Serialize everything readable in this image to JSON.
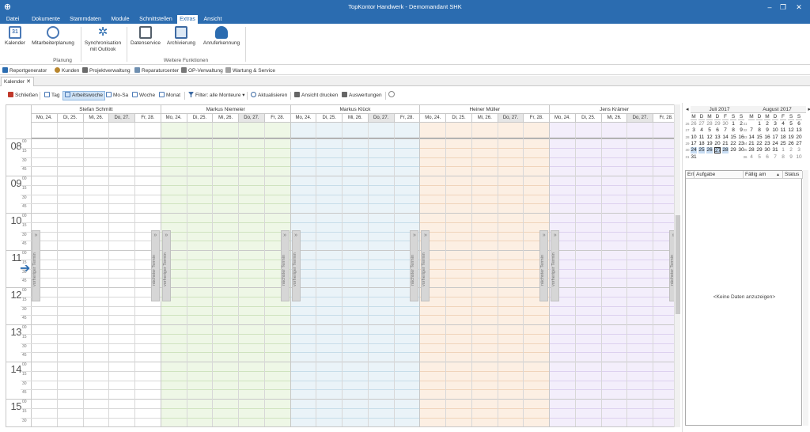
{
  "window": {
    "title": "TopKontor Handwerk - Demomandant SHK",
    "logo": "logo-icon"
  },
  "menu": {
    "tabs": [
      {
        "label": "Datei",
        "active": false
      },
      {
        "label": "Dokumente",
        "active": false
      },
      {
        "label": "Stammdaten",
        "active": false
      },
      {
        "label": "Module",
        "active": false
      },
      {
        "label": "Schnittstellen",
        "active": false
      },
      {
        "label": "Extras",
        "active": true
      },
      {
        "label": "Ansicht",
        "active": false
      }
    ]
  },
  "ribbon": {
    "buttons": [
      {
        "label": "Kalender",
        "icon": "calendar-icon",
        "color": "#4a79b6"
      },
      {
        "label": "Mitarbeiterplanung",
        "icon": "staff-planning-icon",
        "color": "#4a79b6"
      },
      {
        "label": "Synchronisation mit Outlook",
        "label1": "Synchronisation",
        "label2": "mit Outlook",
        "icon": "sync-icon",
        "color": "#2b6cb0"
      },
      {
        "label": "Datenservice",
        "icon": "data-service-icon",
        "color": "#55606b"
      },
      {
        "label": "Archivierung",
        "icon": "archive-icon",
        "color": "#3d6aa3"
      },
      {
        "label": "Anruferkennung",
        "icon": "caller-id-icon",
        "color": "#2b6cb0"
      }
    ],
    "groups": [
      "Planung",
      "Weitere Funktionen"
    ]
  },
  "quickbar": [
    {
      "label": "Reportgenerator",
      "color": "#2b6cb0"
    },
    {
      "label": "Kunden",
      "color": "#b8862e"
    },
    {
      "label": "Projektverwaltung",
      "color": "#6a6a6a"
    },
    {
      "label": "Reparaturcenter",
      "color": "#6f8fb0"
    },
    {
      "label": "OP-Verwaltung",
      "color": "#777777"
    },
    {
      "label": "Wartung & Service",
      "color": "#a0a0a0"
    }
  ],
  "doctab": {
    "label": "Kalender",
    "close": "✕"
  },
  "toolbar": [
    {
      "label": "Schließen",
      "color": "#c0392b",
      "active": false
    },
    {
      "label": "Tag",
      "color": "#4a79b6",
      "active": false
    },
    {
      "label": "Arbeitswoche",
      "color": "#4a79b6",
      "active": true
    },
    {
      "label": "Mo-Sa",
      "color": "#4a79b6",
      "active": false
    },
    {
      "label": "Woche",
      "color": "#4a79b6",
      "active": false
    },
    {
      "label": "Monat",
      "color": "#4a79b6",
      "active": false
    },
    {
      "label": "Filter: alle Monteure ▾",
      "color": "#3d6aa3",
      "active": false
    },
    {
      "label": "Aktualisieren",
      "color": "#3d6aa3",
      "active": false
    },
    {
      "label": "Ansicht drucken",
      "color": "#666666",
      "active": false
    },
    {
      "label": "Auswertungen",
      "color": "#666666",
      "active": false
    },
    {
      "label": "",
      "color": "#888888",
      "active": false
    }
  ],
  "schedule": {
    "days": [
      "Mo, 24.",
      "Di, 25.",
      "Mi, 26.",
      "Do, 27.",
      "Fr, 28."
    ],
    "today_index": 3,
    "hours": [
      "08",
      "09",
      "10",
      "11",
      "12",
      "13",
      "14",
      "15"
    ],
    "minutes": [
      "00",
      "15",
      "30",
      "45"
    ],
    "current_hour_index": 6,
    "nav_prev": "vorheriger Termin",
    "nav_next": "nächster Termin",
    "nav_symbol": "»",
    "resources": [
      {
        "name": "Stefan Schmitt",
        "tint": "#ffffff",
        "line": "#d8d8d8"
      },
      {
        "name": "Markus Niemeier",
        "tint": "#eef7e6",
        "line": "#cfe3bf"
      },
      {
        "name": "Markus Klück",
        "tint": "#eaf3f8",
        "line": "#c7dde9"
      },
      {
        "name": "Heiner Müller",
        "tint": "#fcefe3",
        "line": "#f0d4bb"
      },
      {
        "name": "Jens Krämer",
        "tint": "#f3eefb",
        "line": "#ddd1ef"
      }
    ]
  },
  "calendars": [
    {
      "month": "Juli 2017",
      "headers": [
        "M",
        "D",
        "M",
        "D",
        "F",
        "S",
        "S"
      ],
      "weeks": [
        {
          "wk": "26",
          "days": [
            "26",
            "27",
            "28",
            "29",
            "30",
            "1",
            "2"
          ],
          "muted": [
            1,
            1,
            1,
            1,
            1,
            0,
            0
          ]
        },
        {
          "wk": "27",
          "days": [
            "3",
            "4",
            "5",
            "6",
            "7",
            "8",
            "9"
          ],
          "muted": [
            0,
            0,
            0,
            0,
            0,
            0,
            0
          ]
        },
        {
          "wk": "28",
          "days": [
            "10",
            "11",
            "12",
            "13",
            "14",
            "15",
            "16"
          ],
          "muted": [
            0,
            0,
            0,
            0,
            0,
            0,
            0
          ]
        },
        {
          "wk": "29",
          "days": [
            "17",
            "18",
            "19",
            "20",
            "21",
            "22",
            "23"
          ],
          "muted": [
            0,
            0,
            0,
            0,
            0,
            0,
            0
          ]
        },
        {
          "wk": "30",
          "days": [
            "24",
            "25",
            "26",
            "27",
            "28",
            "29",
            "30"
          ],
          "muted": [
            0,
            0,
            0,
            0,
            0,
            0,
            0
          ]
        },
        {
          "wk": "31",
          "days": [
            "31",
            "",
            "",
            "",
            "",
            "",
            ""
          ],
          "muted": [
            0,
            0,
            0,
            0,
            0,
            0,
            0
          ]
        }
      ],
      "selected_row": 4
    },
    {
      "month": "August 2017",
      "headers": [
        "M",
        "D",
        "M",
        "D",
        "F",
        "S",
        "S"
      ],
      "weeks": [
        {
          "wk": "31",
          "days": [
            "",
            "1",
            "2",
            "3",
            "4",
            "5",
            "6"
          ],
          "muted": [
            0,
            0,
            0,
            0,
            0,
            0,
            0
          ]
        },
        {
          "wk": "32",
          "days": [
            "7",
            "8",
            "9",
            "10",
            "11",
            "12",
            "13"
          ],
          "muted": [
            0,
            0,
            0,
            0,
            0,
            0,
            0
          ]
        },
        {
          "wk": "33",
          "days": [
            "14",
            "15",
            "16",
            "17",
            "18",
            "19",
            "20"
          ],
          "muted": [
            0,
            0,
            0,
            0,
            0,
            0,
            0
          ]
        },
        {
          "wk": "34",
          "days": [
            "21",
            "22",
            "23",
            "24",
            "25",
            "26",
            "27"
          ],
          "muted": [
            0,
            0,
            0,
            0,
            0,
            0,
            0
          ]
        },
        {
          "wk": "35",
          "days": [
            "28",
            "29",
            "30",
            "31",
            "1",
            "2",
            "3"
          ],
          "muted": [
            0,
            0,
            0,
            0,
            1,
            1,
            1
          ]
        },
        {
          "wk": "36",
          "days": [
            "4",
            "5",
            "6",
            "7",
            "8",
            "9",
            "10"
          ],
          "muted": [
            1,
            1,
            1,
            1,
            1,
            1,
            1
          ]
        }
      ],
      "selected_row": -1
    }
  ],
  "tasks": {
    "columns": [
      "Erl",
      "Aufgabe",
      "Fällig am",
      "Status"
    ],
    "empty_text": "<Keine Daten anzuzeigen>"
  }
}
